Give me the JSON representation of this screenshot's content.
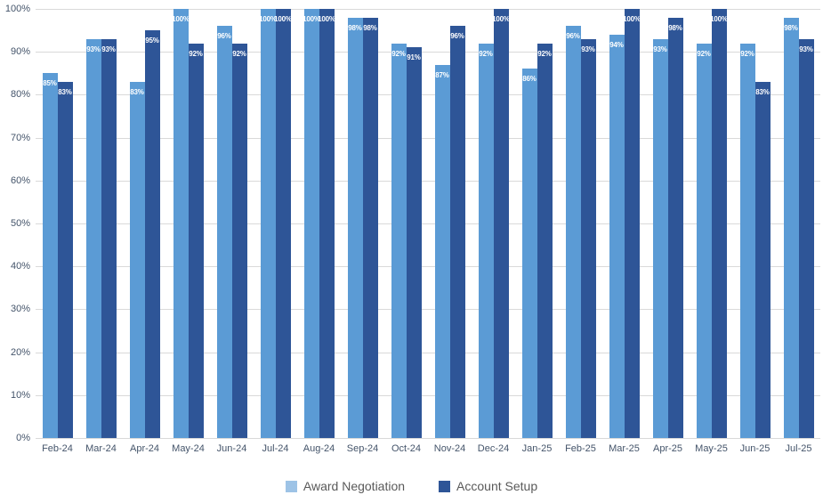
{
  "chart_data": {
    "type": "bar",
    "title": "",
    "xlabel": "",
    "ylabel": "",
    "ylim": [
      0,
      100
    ],
    "grid": true,
    "legend_position": "bottom",
    "data_labels": "inside-end white percentages",
    "y_ticks": [
      "0%",
      "10%",
      "20%",
      "30%",
      "40%",
      "50%",
      "60%",
      "70%",
      "80%",
      "90%",
      "100%"
    ],
    "categories": [
      "Feb-24",
      "Mar-24",
      "Apr-24",
      "May-24",
      "Jun-24",
      "Jul-24",
      "Aug-24",
      "Sep-24",
      "Oct-24",
      "Nov-24",
      "Dec-24",
      "Jan-25",
      "Feb-25",
      "Mar-25",
      "Apr-25",
      "May-25",
      "Jun-25",
      "Jul-25"
    ],
    "series": [
      {
        "name": "Award Negotiation",
        "color": "#5B9BD5",
        "legend_color": "#9DC3E6",
        "values": [
          85,
          93,
          83,
          100,
          96,
          100,
          100,
          98,
          92,
          87,
          92,
          86,
          96,
          94,
          93,
          92,
          92,
          98
        ],
        "labels": [
          "85%",
          "93%",
          "83%",
          "100%",
          "96%",
          "100%",
          "100%",
          "98%",
          "92%",
          "87%",
          "92%",
          "86%",
          "96%",
          "94%",
          "93%",
          "92%",
          "92%",
          "98%"
        ]
      },
      {
        "name": "Account Setup",
        "color": "#2E5597",
        "legend_color": "#2E5597",
        "values": [
          83,
          93,
          95,
          92,
          92,
          100,
          100,
          98,
          91,
          96,
          100,
          92,
          93,
          100,
          98,
          100,
          83,
          93
        ],
        "labels": [
          "83%",
          "93%",
          "95%",
          "92%",
          "92%",
          "100%",
          "100%",
          "98%",
          "91%",
          "96%",
          "100%",
          "92%",
          "93%",
          "100%",
          "98%",
          "100%",
          "83%",
          "93%"
        ]
      }
    ]
  },
  "colors": {
    "background": "#FFFFFF",
    "gridline": "#D9D9D9",
    "axis_text": "#44546A",
    "legend_text": "#595959",
    "data_label_text": "#FFFFFF"
  },
  "legend": {
    "items": [
      {
        "label": "Award Negotiation"
      },
      {
        "label": "Account Setup"
      }
    ]
  }
}
